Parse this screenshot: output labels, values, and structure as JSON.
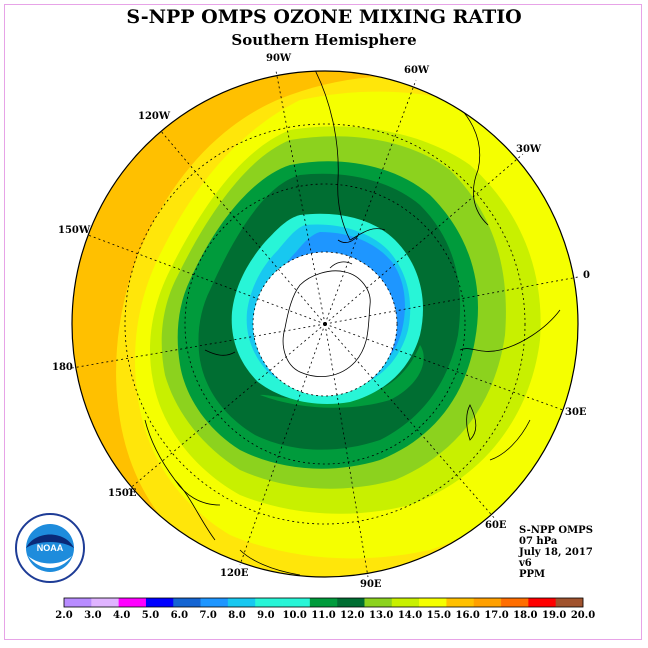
{
  "header": {
    "title": "S-NPP OMPS OZONE MIXING RATIO",
    "subtitle": "Southern Hemisphere"
  },
  "map": {
    "projection": "south-polar-stereographic",
    "longitude_labels": [
      "90W",
      "60W",
      "30W",
      "0",
      "30E",
      "60E",
      "90E",
      "120E",
      "150E",
      "180",
      "150W",
      "120W"
    ],
    "fields": [
      {
        "band": "16.0-17.0",
        "color": "#ffc000"
      },
      {
        "band": "15.0-16.0",
        "color": "#ffe60a"
      },
      {
        "band": "14.0-15.0",
        "color": "#f5ff00"
      },
      {
        "band": "13.0-14.0",
        "color": "#c8f000"
      },
      {
        "band": "12.0-13.0",
        "color": "#8cd21e"
      },
      {
        "band": "11.0-12.0",
        "color": "#009b3c"
      },
      {
        "band": "10.0-11.0",
        "color": "#006e32"
      },
      {
        "band": "9.0-10.0",
        "color": "#28f5d7"
      },
      {
        "band": "8.0-9.0",
        "color": "#18c8f0"
      },
      {
        "band": "7.0-8.0",
        "color": "#1e96ff"
      },
      {
        "band": "missing/polar-night",
        "color": "#ffffff"
      }
    ]
  },
  "info": {
    "product": "S-NPP OMPS",
    "level": "07 hPa",
    "date": "July 18, 2017",
    "version": "v6",
    "units": "PPM"
  },
  "logo": {
    "text": "NOAA"
  },
  "colorbar": {
    "ticks": [
      "2.0",
      "3.0",
      "4.0",
      "5.0",
      "6.0",
      "7.0",
      "8.0",
      "9.0",
      "10.0",
      "11.0",
      "12.0",
      "13.0",
      "14.0",
      "15.0",
      "16.0",
      "17.0",
      "18.0",
      "19.0",
      "20.0"
    ],
    "colors": [
      "#b88cff",
      "#e0b4ff",
      "#ff00ff",
      "#0000ff",
      "#1464d2",
      "#1e96ff",
      "#18c8f0",
      "#28f5d7",
      "#28f5d7",
      "#009b3c",
      "#006e32",
      "#8cd21e",
      "#c8f000",
      "#f5ff00",
      "#ffc000",
      "#ffa000",
      "#ff6e00",
      "#ff0000",
      "#a0522d"
    ]
  }
}
